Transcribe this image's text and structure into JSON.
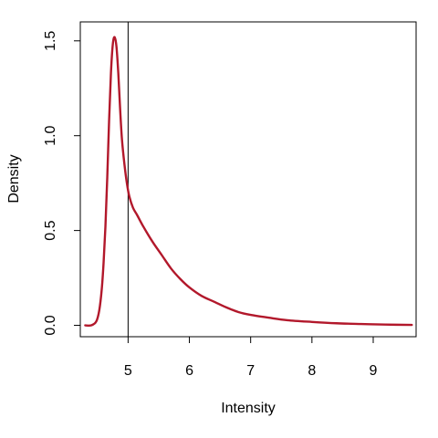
{
  "chart_data": {
    "type": "line",
    "title": "",
    "xlabel": "Intensity",
    "ylabel": "Density",
    "xlim": [
      4.22,
      9.7
    ],
    "ylim": [
      -0.06,
      1.6
    ],
    "x_ticks": [
      5,
      6,
      7,
      8,
      9
    ],
    "x_tick_labels": [
      "5",
      "6",
      "7",
      "8",
      "9"
    ],
    "y_ticks": [
      0.0,
      0.5,
      1.0,
      1.5
    ],
    "y_tick_labels": [
      "0.0",
      "0.5",
      "1.0",
      "1.5"
    ],
    "grid": false,
    "vline": 5,
    "series": [
      {
        "color": "#b2182b",
        "points": [
          [
            4.3,
            0.0
          ],
          [
            4.4,
            0.0
          ],
          [
            4.48,
            0.02
          ],
          [
            4.53,
            0.08
          ],
          [
            4.57,
            0.19
          ],
          [
            4.6,
            0.33
          ],
          [
            4.63,
            0.52
          ],
          [
            4.66,
            0.78
          ],
          [
            4.69,
            1.08
          ],
          [
            4.72,
            1.33
          ],
          [
            4.75,
            1.48
          ],
          [
            4.78,
            1.52
          ],
          [
            4.81,
            1.47
          ],
          [
            4.84,
            1.33
          ],
          [
            4.87,
            1.14
          ],
          [
            4.9,
            0.98
          ],
          [
            4.94,
            0.85
          ],
          [
            4.98,
            0.75
          ],
          [
            5.02,
            0.68
          ],
          [
            5.08,
            0.62
          ],
          [
            5.15,
            0.58
          ],
          [
            5.25,
            0.52
          ],
          [
            5.4,
            0.44
          ],
          [
            5.55,
            0.37
          ],
          [
            5.7,
            0.3
          ],
          [
            5.85,
            0.245
          ],
          [
            6.0,
            0.2
          ],
          [
            6.2,
            0.155
          ],
          [
            6.4,
            0.125
          ],
          [
            6.6,
            0.095
          ],
          [
            6.8,
            0.07
          ],
          [
            7.0,
            0.055
          ],
          [
            7.3,
            0.04
          ],
          [
            7.6,
            0.027
          ],
          [
            8.0,
            0.018
          ],
          [
            8.4,
            0.011
          ],
          [
            8.8,
            0.007
          ],
          [
            9.2,
            0.004
          ],
          [
            9.63,
            0.002
          ]
        ]
      }
    ]
  }
}
